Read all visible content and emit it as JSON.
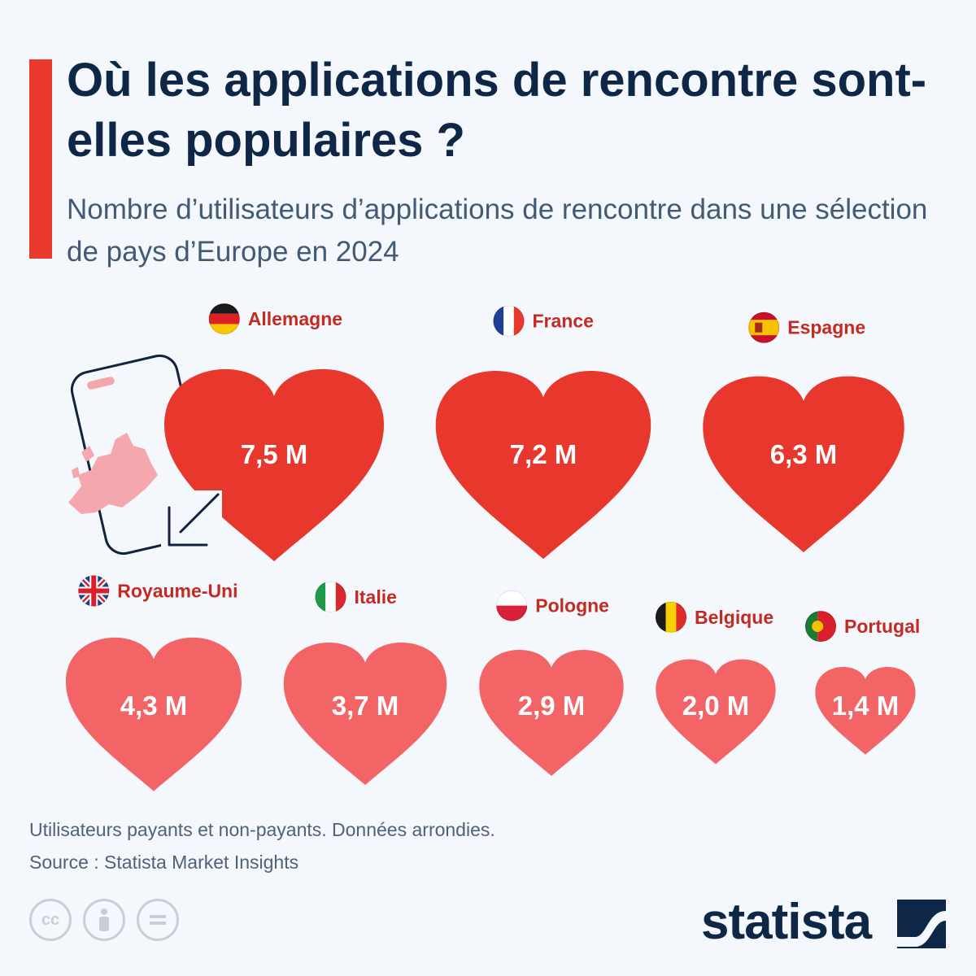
{
  "title": "Où les applications de rencontre sont-elles populaires ?",
  "subtitle": "Nombre d’utilisateurs d’applications de rencontre dans une sélection de pays d’Europe en 2024",
  "chart_data": {
    "type": "pictogram",
    "unit": "M",
    "title": "Où les applications de rencontre sont-elles populaires ?",
    "subtitle": "Nombre d’utilisateurs d’applications de rencontre dans une sélection de pays d’Europe en 2024",
    "categories": [
      "Allemagne",
      "France",
      "Espagne",
      "Royaume-Uni",
      "Italie",
      "Pologne",
      "Belgique",
      "Portugal"
    ],
    "values": [
      7.5,
      7.2,
      6.3,
      4.3,
      3.7,
      2.9,
      2.0,
      1.4
    ],
    "value_labels": [
      "7,5 M",
      "7,2 M",
      "6,3 M",
      "4,3 M",
      "3,7 M",
      "2,9 M",
      "2,0 M",
      "1,4 M"
    ],
    "flags": [
      "germany-flag",
      "france-flag",
      "spain-flag",
      "uk-flag",
      "italy-flag",
      "poland-flag",
      "belgium-flag",
      "portugal-flag"
    ]
  },
  "colors": {
    "heart_large": "#e8372c",
    "heart_small": "#f26466",
    "country_label": "#c32a22",
    "title": "#0f2747",
    "accent": "#e8392c"
  },
  "footer": {
    "note": "Utilisateurs payants et non-payants. Données arrondies.",
    "source": "Source : Statista Market Insights",
    "brand": "statista",
    "license_icons": [
      "cc-icon",
      "by-icon",
      "nd-icon"
    ]
  }
}
